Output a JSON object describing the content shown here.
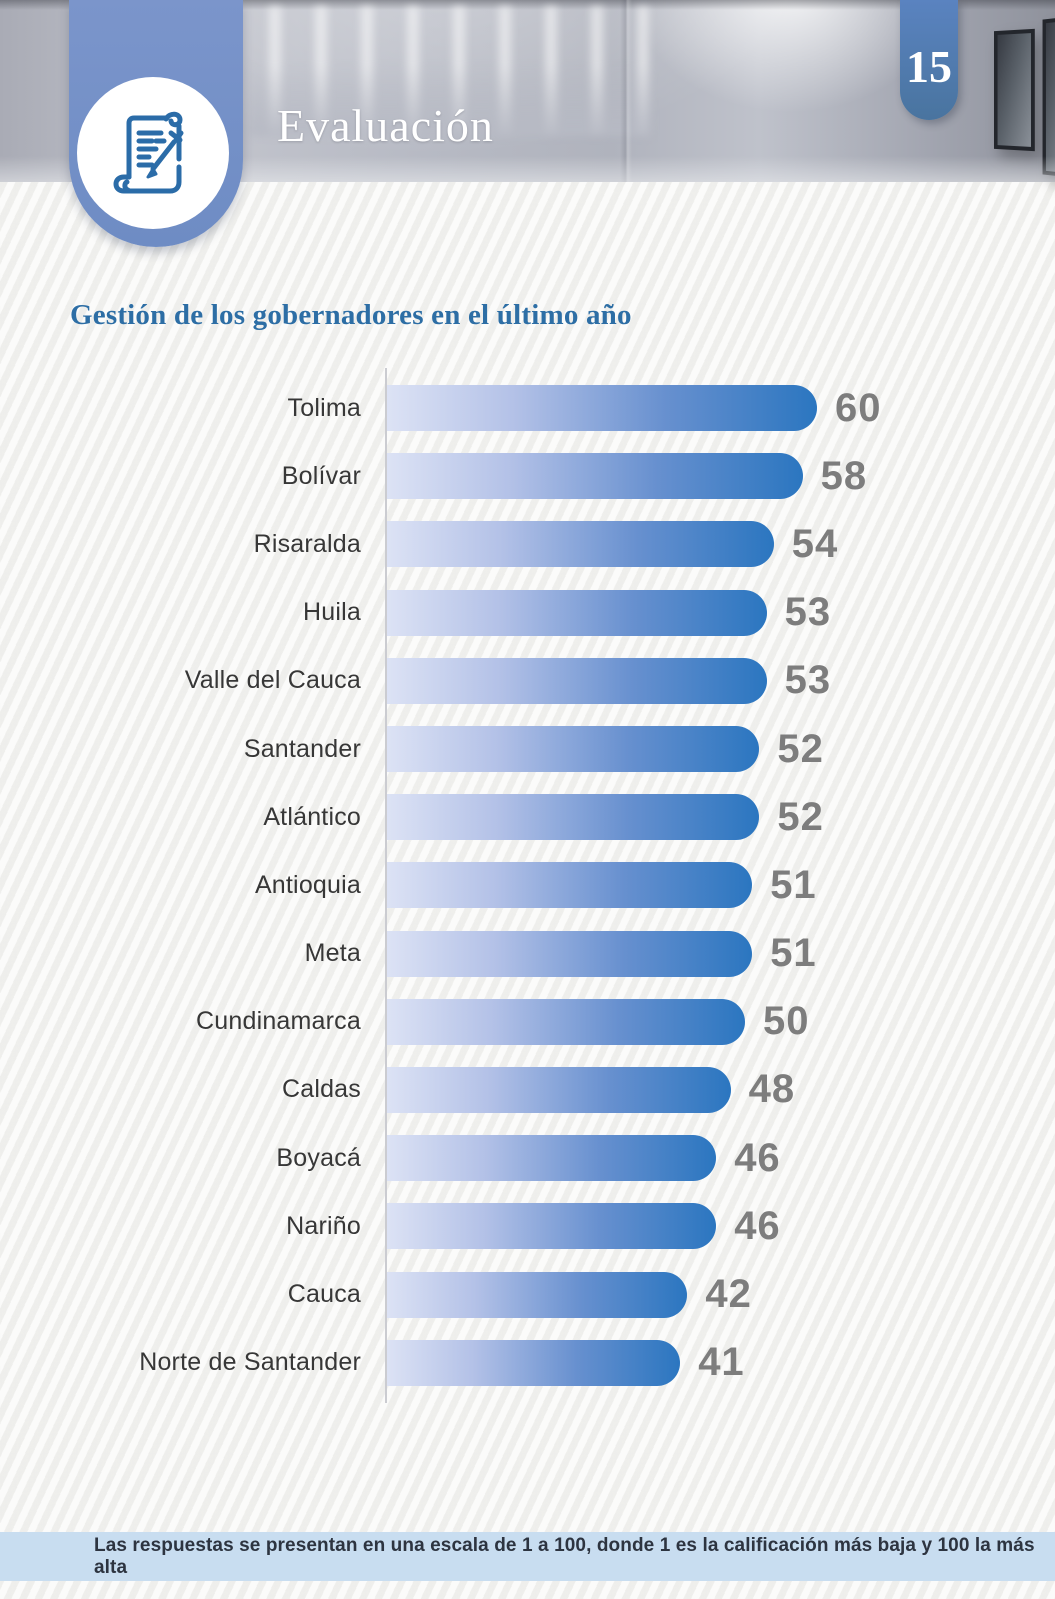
{
  "header": {
    "section_title": "Evaluación",
    "page_number": "15"
  },
  "chart_data": {
    "type": "bar",
    "orientation": "horizontal",
    "title": "Gestión de los gobernadores en el último año",
    "categories": [
      "Tolima",
      "Bolívar",
      "Risaralda",
      "Huila",
      "Valle del Cauca",
      "Santander",
      "Atlántico",
      "Antioquia",
      "Meta",
      "Cundinamarca",
      "Caldas",
      "Boyacá",
      "Nariño",
      "Cauca",
      "Norte de Santander"
    ],
    "values": [
      60,
      58,
      54,
      53,
      53,
      52,
      52,
      51,
      51,
      50,
      48,
      46,
      46,
      42,
      41
    ],
    "xlim": [
      0,
      62
    ],
    "grid": false,
    "legend": false,
    "value_labels": true,
    "bar_color_start": "#dde3f5",
    "bar_color_end": "#2b76c0",
    "value_label_color": "#7d7d7d",
    "category_label_color": "#373737",
    "title_color": "#2d6ea5"
  },
  "footer": {
    "note": "Las respuestas se presentan en una escala de 1 a 100, donde 1 es la calificación más baja y 100 la más alta",
    "band_color": "#c8ddf0"
  },
  "colors": {
    "ribbon_blue": "#7390c8",
    "page_tab_blue": "#4d79b7",
    "icon_stroke_blue": "#2b6ca8"
  }
}
